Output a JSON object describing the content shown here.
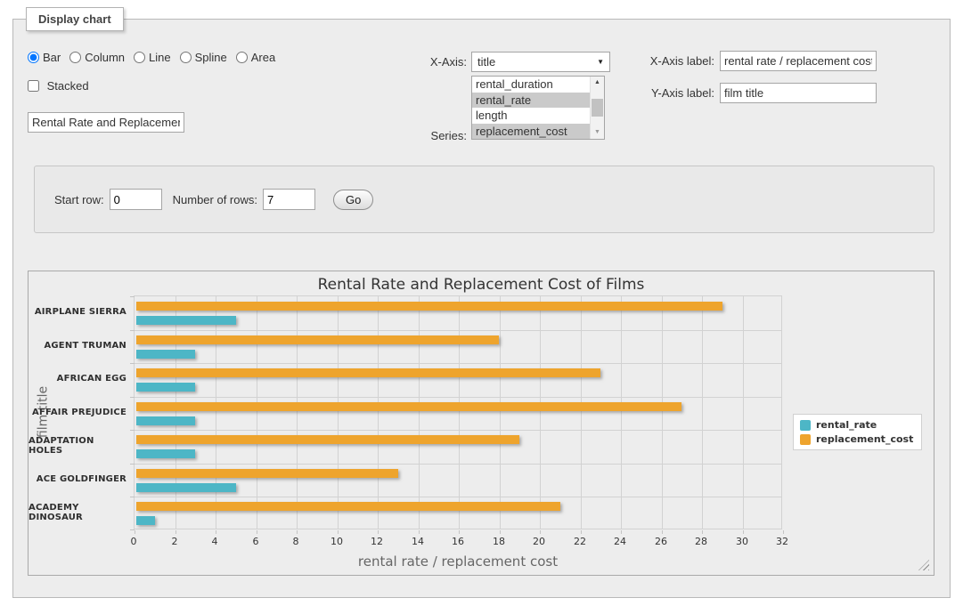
{
  "panel": {
    "legend": "Display chart",
    "chart_types": [
      "Bar",
      "Column",
      "Line",
      "Spline",
      "Area"
    ],
    "selected_chart_type": "Bar",
    "stacked_label": "Stacked",
    "title_input_value": "Rental Rate and Replacement Cost of Films",
    "x_axis": {
      "label": "X-Axis:",
      "selected": "title"
    },
    "series_field": {
      "label": "Series:",
      "visible_options": [
        "rental_duration",
        "rental_rate",
        "length",
        "replacement_cost"
      ],
      "selected": [
        "rental_rate",
        "replacement_cost"
      ]
    },
    "x_axis_label_field": {
      "label": "X-Axis label:",
      "value": "rental rate / replacement cost"
    },
    "y_axis_label_field": {
      "label": "Y-Axis label:",
      "value": "film title"
    }
  },
  "rows_panel": {
    "start_row_label": "Start row:",
    "start_row_value": "0",
    "num_rows_label": "Number of rows:",
    "num_rows_value": "7",
    "go_label": "Go"
  },
  "chart_data": {
    "type": "bar",
    "title": "Rental Rate and Replacement Cost of Films",
    "xlabel": "rental rate / replacement cost",
    "ylabel": "film title",
    "categories": [
      "AIRPLANE SIERRA",
      "AGENT TRUMAN",
      "AFRICAN EGG",
      "AFFAIR PREJUDICE",
      "ADAPTATION HOLES",
      "ACE GOLDFINGER",
      "ACADEMY DINOSAUR"
    ],
    "series": [
      {
        "name": "rental_rate",
        "color": "#4DB6C6",
        "values": [
          4.99,
          2.99,
          2.99,
          2.99,
          2.99,
          4.99,
          0.99
        ]
      },
      {
        "name": "replacement_cost",
        "color": "#EEA42D",
        "values": [
          28.99,
          17.99,
          22.99,
          26.99,
          18.99,
          12.99,
          20.99
        ]
      }
    ],
    "xlim": [
      0,
      32
    ],
    "xtick_step": 2,
    "grid": true,
    "legend_position": "right",
    "bar_stack_order_top_to_bottom": [
      "replacement_cost",
      "rental_rate"
    ]
  }
}
